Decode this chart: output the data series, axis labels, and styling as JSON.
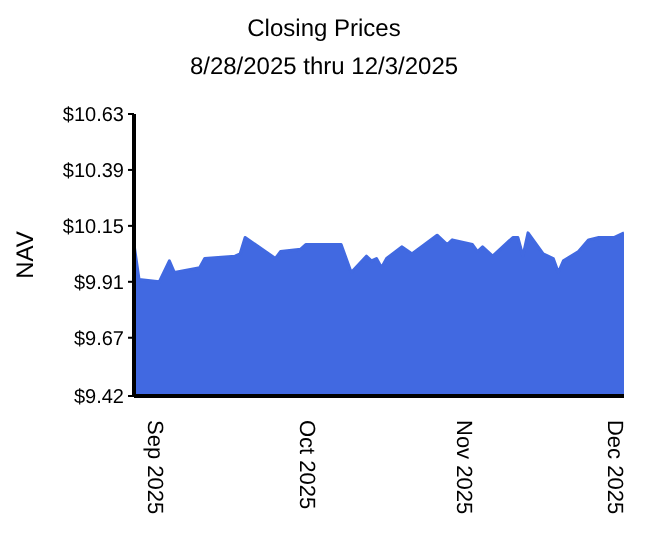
{
  "chart_data": {
    "type": "area",
    "title": "Closing Prices",
    "subtitle": "8/28/2025 thru 12/3/2025",
    "ylabel": "NAV",
    "x": [
      "2025-08-28",
      "2025-08-29",
      "2025-09-02",
      "2025-09-04",
      "2025-09-05",
      "2025-09-10",
      "2025-09-11",
      "2025-09-17",
      "2025-09-18",
      "2025-09-19",
      "2025-09-25",
      "2025-09-26",
      "2025-09-30",
      "2025-10-01",
      "2025-10-06",
      "2025-10-07",
      "2025-10-08",
      "2025-10-10",
      "2025-10-13",
      "2025-10-14",
      "2025-10-15",
      "2025-10-16",
      "2025-10-17",
      "2025-10-20",
      "2025-10-22",
      "2025-10-27",
      "2025-10-29",
      "2025-10-30",
      "2025-11-03",
      "2025-11-04",
      "2025-11-05",
      "2025-11-07",
      "2025-11-11",
      "2025-11-12",
      "2025-11-13",
      "2025-11-14",
      "2025-11-17",
      "2025-11-19",
      "2025-11-20",
      "2025-11-21",
      "2025-11-24",
      "2025-11-26",
      "2025-11-28",
      "2025-12-01",
      "2025-12-03"
    ],
    "series": [
      {
        "color": "#4169e1",
        "values": [
          10.07,
          9.92,
          9.91,
          10.0,
          9.95,
          9.97,
          10.01,
          10.02,
          10.03,
          10.1,
          10.01,
          10.04,
          10.05,
          10.07,
          10.07,
          10.07,
          10.07,
          9.95,
          10.02,
          10.0,
          10.01,
          9.97,
          10.01,
          10.06,
          10.03,
          10.11,
          10.07,
          10.09,
          10.07,
          10.04,
          10.06,
          10.02,
          10.1,
          10.1,
          10.02,
          10.12,
          10.03,
          10.01,
          9.95,
          10.0,
          10.04,
          10.09,
          10.1,
          10.1,
          10.12
        ]
      }
    ],
    "xlim": [
      "2025-08-28",
      "2025-12-03"
    ],
    "xticks": [
      {
        "value": "2025-09-01",
        "label": "Sep 2025"
      },
      {
        "value": "2025-10-01",
        "label": "Oct 2025"
      },
      {
        "value": "2025-11-01",
        "label": "Nov 2025"
      },
      {
        "value": "2025-12-01",
        "label": "Dec 2025"
      }
    ],
    "ylim": [
      9.42,
      10.63
    ],
    "yticks": [
      {
        "value": 9.42,
        "label": "$9.42"
      },
      {
        "value": 9.67,
        "label": "$9.67"
      },
      {
        "value": 9.91,
        "label": "$9.91"
      },
      {
        "value": 10.15,
        "label": "$10.15"
      },
      {
        "value": 10.39,
        "label": "$10.39"
      },
      {
        "value": 10.63,
        "label": "$10.63"
      }
    ],
    "grid": false,
    "legend": false
  }
}
